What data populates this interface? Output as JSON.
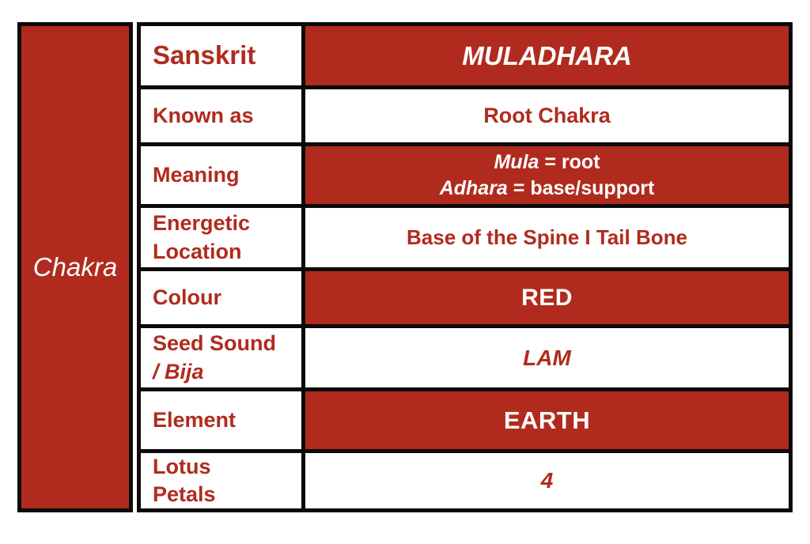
{
  "colors": {
    "red_fill": "#b02b1e",
    "red_text": "#b02b1e",
    "border": "#0b0a0a",
    "background": "#ffffff"
  },
  "table": {
    "corner_label": "Chakra",
    "rows": [
      {
        "label": "Sanskrit",
        "value": "MULADHARA"
      },
      {
        "label": "Known as",
        "value": "Root Chakra"
      },
      {
        "label": "Meaning",
        "parts": {
          "l1i": "Mula",
          "l1r": " = root",
          "l2i": "Adhara",
          "l2r": " = base/support"
        }
      },
      {
        "label": "Energetic\nLocation",
        "value": "Base of the Spine I Tail Bone"
      },
      {
        "label": "Colour",
        "value": "RED"
      },
      {
        "label_main": "Seed Sound",
        "label_italic": "/ Bija",
        "value": "LAM"
      },
      {
        "label": "Element",
        "value": "EARTH"
      },
      {
        "label": "Lotus\nPetals",
        "value": "4"
      }
    ]
  }
}
